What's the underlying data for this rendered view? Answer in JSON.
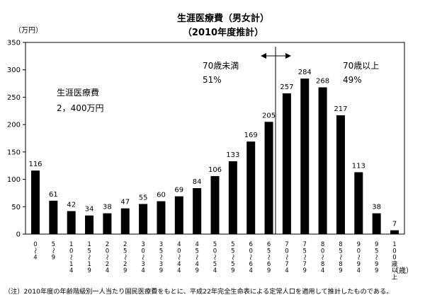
{
  "chart_data": {
    "type": "bar",
    "title": "生涯医療費（男女計）",
    "subtitle": "（2010年度推計）",
    "ylabel": "（万円）",
    "xlabel": "（歳）",
    "ylim": [
      0,
      350
    ],
    "yticks": [
      "0",
      "50",
      "100",
      "150",
      "200",
      "250",
      "300",
      "350"
    ],
    "grid": false,
    "bar_color": "#000000",
    "categories": [
      "0～4",
      "5～9",
      "10～14",
      "15～19",
      "20～24",
      "25～29",
      "30～34",
      "35～39",
      "40～44",
      "45～49",
      "50～54",
      "55～59",
      "60～64",
      "65～69",
      "70～74",
      "75～79",
      "80～84",
      "85～89",
      "90～94",
      "95～99",
      "100歳以上"
    ],
    "category_labels": [
      [
        "0",
        "～",
        "4"
      ],
      [
        "5",
        "～",
        "9"
      ],
      [
        "1",
        "0",
        "～",
        "1",
        "4"
      ],
      [
        "1",
        "5",
        "～",
        "1",
        "9"
      ],
      [
        "2",
        "0",
        "～",
        "2",
        "4"
      ],
      [
        "2",
        "5",
        "～",
        "2",
        "9"
      ],
      [
        "3",
        "0",
        "～",
        "3",
        "4"
      ],
      [
        "3",
        "5",
        "～",
        "3",
        "9"
      ],
      [
        "4",
        "0",
        "～",
        "4",
        "4"
      ],
      [
        "4",
        "5",
        "～",
        "4",
        "9"
      ],
      [
        "5",
        "0",
        "～",
        "5",
        "4"
      ],
      [
        "5",
        "5",
        "～",
        "5",
        "9"
      ],
      [
        "6",
        "0",
        "～",
        "6",
        "4"
      ],
      [
        "6",
        "5",
        "～",
        "6",
        "9"
      ],
      [
        "7",
        "0",
        "～",
        "7",
        "4"
      ],
      [
        "7",
        "5",
        "～",
        "7",
        "9"
      ],
      [
        "8",
        "0",
        "～",
        "8",
        "4"
      ],
      [
        "8",
        "5",
        "～",
        "8",
        "9"
      ],
      [
        "9",
        "0",
        "～",
        "9",
        "4"
      ],
      [
        "9",
        "5",
        "～",
        "9",
        "9"
      ],
      [
        "1",
        "0",
        "0",
        "歳",
        "以",
        "上"
      ]
    ],
    "values": [
      116,
      61,
      42,
      34,
      38,
      47,
      55,
      60,
      69,
      84,
      106,
      133,
      169,
      205,
      257,
      284,
      268,
      217,
      113,
      38,
      7
    ],
    "annotations": {
      "total_label": "生涯医療費",
      "total_value": "2，400万円",
      "under70_label": "70歳未満",
      "under70_share": "51%",
      "over70_label": "70歳以上",
      "over70_share": "49%"
    },
    "note": "（注）2010年度の年齢階級別一人当たり国民医療費をもとに、平成22年完全生命表による定常人口を適用して推計したものである。"
  }
}
